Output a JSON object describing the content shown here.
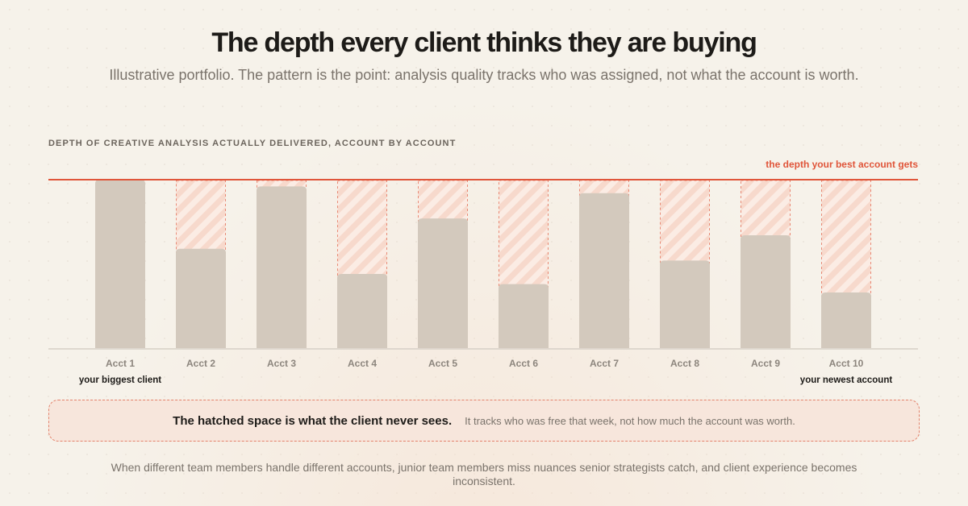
{
  "title": "The depth every client thinks they are buying",
  "subtitle": "Illustrative portfolio. The pattern is the point: analysis quality tracks who was assigned, not what the account is worth.",
  "chart_heading": "DEPTH OF CREATIVE ANALYSIS ACTUALLY DELIVERED, ACCOUNT BY ACCOUNT",
  "chart_data": {
    "type": "bar",
    "categories": [
      "Acct 1",
      "Acct 2",
      "Acct 3",
      "Acct 4",
      "Acct 5",
      "Acct 6",
      "Acct 7",
      "Acct 8",
      "Acct 9",
      "Acct 10"
    ],
    "values": [
      100,
      59,
      96,
      44,
      77,
      38,
      92,
      52,
      67,
      33
    ],
    "ylim": [
      0,
      100
    ],
    "reference_value": 100,
    "reference_label": "the depth your best account gets",
    "category_notes": [
      {
        "category": "Acct 1",
        "text": "your biggest client"
      },
      {
        "category": "Acct 10",
        "text": "your newest account"
      }
    ],
    "colors": {
      "bar": "#d3c9bd",
      "reference_line": "#e0553a",
      "gap_fill": "#f7d9cc",
      "gap_stripe": "#fbece4"
    }
  },
  "callout": {
    "strong": "The hatched space is what the client never sees.",
    "text": "It tracks who was free that week, not how much the account was worth."
  },
  "footer": "When different team members handle different accounts, junior team members miss nuances senior strategists catch, and client experience becomes inconsistent."
}
